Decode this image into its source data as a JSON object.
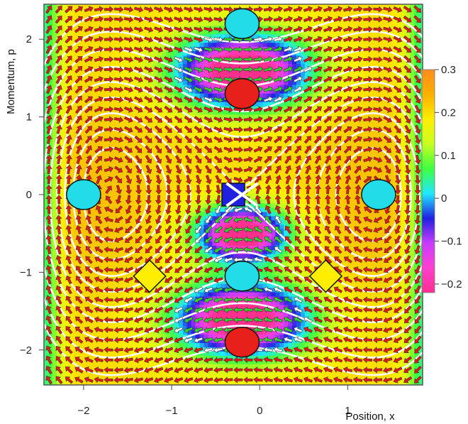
{
  "chart_data": {
    "type": "heatmap",
    "title": "",
    "xlabel": "Position, x",
    "ylabel": "Momentum, p",
    "xlim": [
      -2.45,
      1.85
    ],
    "ylim": [
      -2.45,
      2.45
    ],
    "x_ticks": [
      {
        "value": -2,
        "label": "−2"
      },
      {
        "value": -1,
        "label": "−1"
      },
      {
        "value": 0,
        "label": "0"
      },
      {
        "value": 1,
        "label": "1"
      }
    ],
    "y_ticks": [
      {
        "value": 2,
        "label": "2"
      },
      {
        "value": 1,
        "label": "1"
      },
      {
        "value": 0,
        "label": "0"
      },
      {
        "value": -1,
        "label": "−1"
      },
      {
        "value": -2,
        "label": "−2"
      }
    ],
    "colorbar": {
      "range": [
        -0.22,
        0.3
      ],
      "ticks": [
        {
          "value": 0.3,
          "label": "0.3"
        },
        {
          "value": 0.2,
          "label": "0.2"
        },
        {
          "value": 0.1,
          "label": "0.1"
        },
        {
          "value": 0,
          "label": "0"
        },
        {
          "value": -0.1,
          "label": "−0.1"
        },
        {
          "value": -0.2,
          "label": "−0.2"
        }
      ],
      "colors": [
        "#ff2f8f",
        "#ff40d0",
        "#c83cff",
        "#2020e0",
        "#20e8ff",
        "#40ff40",
        "#c8ff20",
        "#ffee00",
        "#ffb000",
        "#ff8c20"
      ]
    },
    "saddle_point": {
      "x": -0.2,
      "p": 0
    },
    "centers": [
      {
        "x": -2,
        "p": 0
      },
      {
        "x": 1.4,
        "p": 0
      }
    ],
    "circle_markers": [
      {
        "x": -2.0,
        "p": 0.0,
        "color": "#22dde8"
      },
      {
        "x": 1.35,
        "p": 0.0,
        "color": "#22dde8"
      },
      {
        "x": -0.2,
        "p": 2.2,
        "color": "#22dde8"
      },
      {
        "x": -0.2,
        "p": -1.05,
        "color": "#22dde8"
      },
      {
        "x": -0.2,
        "p": 1.3,
        "color": "#e8201c"
      },
      {
        "x": -0.2,
        "p": -1.9,
        "color": "#e8201c"
      }
    ],
    "square_markers": [
      {
        "x": -0.3,
        "p": 0.0,
        "color": "#2020e0"
      },
      {
        "x": -1.25,
        "p": -1.05,
        "color": "#ffee00"
      },
      {
        "x": 0.75,
        "p": -1.05,
        "color": "#ffee00"
      }
    ],
    "arrow_colors": {
      "positive": "#e81818",
      "negative": "#30d830",
      "near_zero": "#ffffff"
    }
  }
}
